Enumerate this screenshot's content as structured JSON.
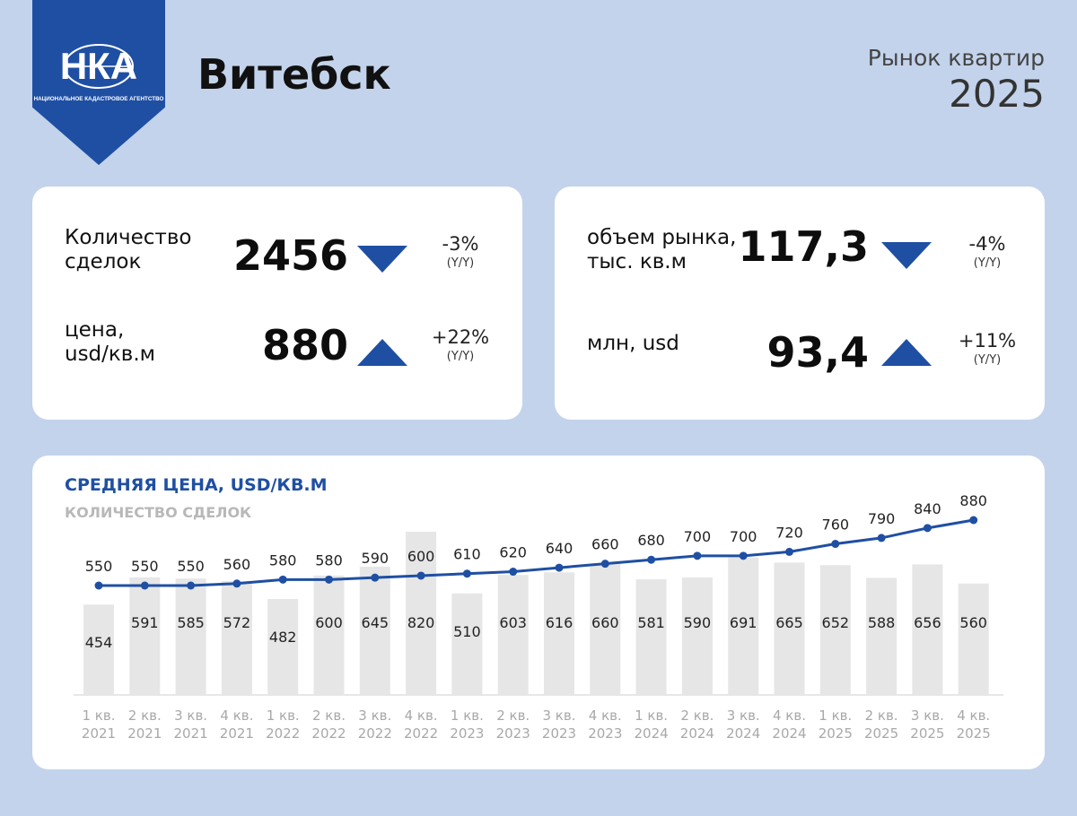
{
  "header": {
    "logo_text": "НКА",
    "logo_caption": "НАЦИОНАЛЬНОЕ КАДАСТРОВОЕ АГЕНТСТВО",
    "city": "Витебск",
    "subtitle": "Рынок квартир",
    "year": "2025"
  },
  "card_left": {
    "deals_label_1": "Количество",
    "deals_label_2": "сделок",
    "deals_value": "2456",
    "deals_change": "-3%",
    "deals_yy": "(Y/Y)",
    "price_label_1": "цена,",
    "price_label_2": "usd/кв.м",
    "price_value": "880",
    "price_change": "+22%",
    "price_yy": "(Y/Y)"
  },
  "card_right": {
    "volume_label_1": "объем рынка,",
    "volume_label_2": "тыс. кв.м",
    "volume_value": "117,3",
    "volume_change": "-4%",
    "volume_yy": "(Y/Y)",
    "money_label": "млн, usd",
    "money_value": "93,4",
    "money_change": "+11%",
    "money_yy": "(Y/Y)"
  },
  "colors": {
    "accent": "#1f4fa3",
    "background": "#c3d3eb",
    "bar": "#e6e6e6"
  },
  "chart_data": {
    "type": "bar+line",
    "title": "СРЕДНЯЯ ЦЕНА, USD/КВ.М",
    "subtitle": "КОЛИЧЕСТВО СДЕЛОК",
    "categories": [
      [
        "1 кв.",
        "2021"
      ],
      [
        "2 кв.",
        "2021"
      ],
      [
        "3 кв.",
        "2021"
      ],
      [
        "4 кв.",
        "2021"
      ],
      [
        "1 кв.",
        "2022"
      ],
      [
        "2 кв.",
        "2022"
      ],
      [
        "3 кв.",
        "2022"
      ],
      [
        "4 кв.",
        "2022"
      ],
      [
        "1 кв.",
        "2023"
      ],
      [
        "2 кв.",
        "2023"
      ],
      [
        "3 кв.",
        "2023"
      ],
      [
        "4 кв.",
        "2023"
      ],
      [
        "1 кв.",
        "2024"
      ],
      [
        "2 кв.",
        "2024"
      ],
      [
        "3 кв.",
        "2024"
      ],
      [
        "4 кв.",
        "2024"
      ],
      [
        "1 кв.",
        "2025"
      ],
      [
        "2 кв.",
        "2025"
      ],
      [
        "3 кв.",
        "2025"
      ],
      [
        "4 кв.",
        "2025"
      ]
    ],
    "series": [
      {
        "name": "КОЛИЧЕСТВО СДЕЛОК",
        "type": "bar",
        "values": [
          454,
          591,
          585,
          572,
          482,
          600,
          645,
          820,
          510,
          603,
          616,
          660,
          581,
          590,
          691,
          665,
          652,
          588,
          656,
          560
        ]
      },
      {
        "name": "СРЕДНЯЯ ЦЕНА, USD/КВ.М",
        "type": "line",
        "values": [
          550,
          550,
          550,
          560,
          580,
          580,
          590,
          600,
          610,
          620,
          640,
          660,
          680,
          700,
          700,
          720,
          760,
          790,
          840,
          880
        ]
      }
    ],
    "bar_range": [
      0,
      820
    ],
    "line_range": [
      550,
      880
    ],
    "grid": false,
    "legend": "top-left"
  }
}
